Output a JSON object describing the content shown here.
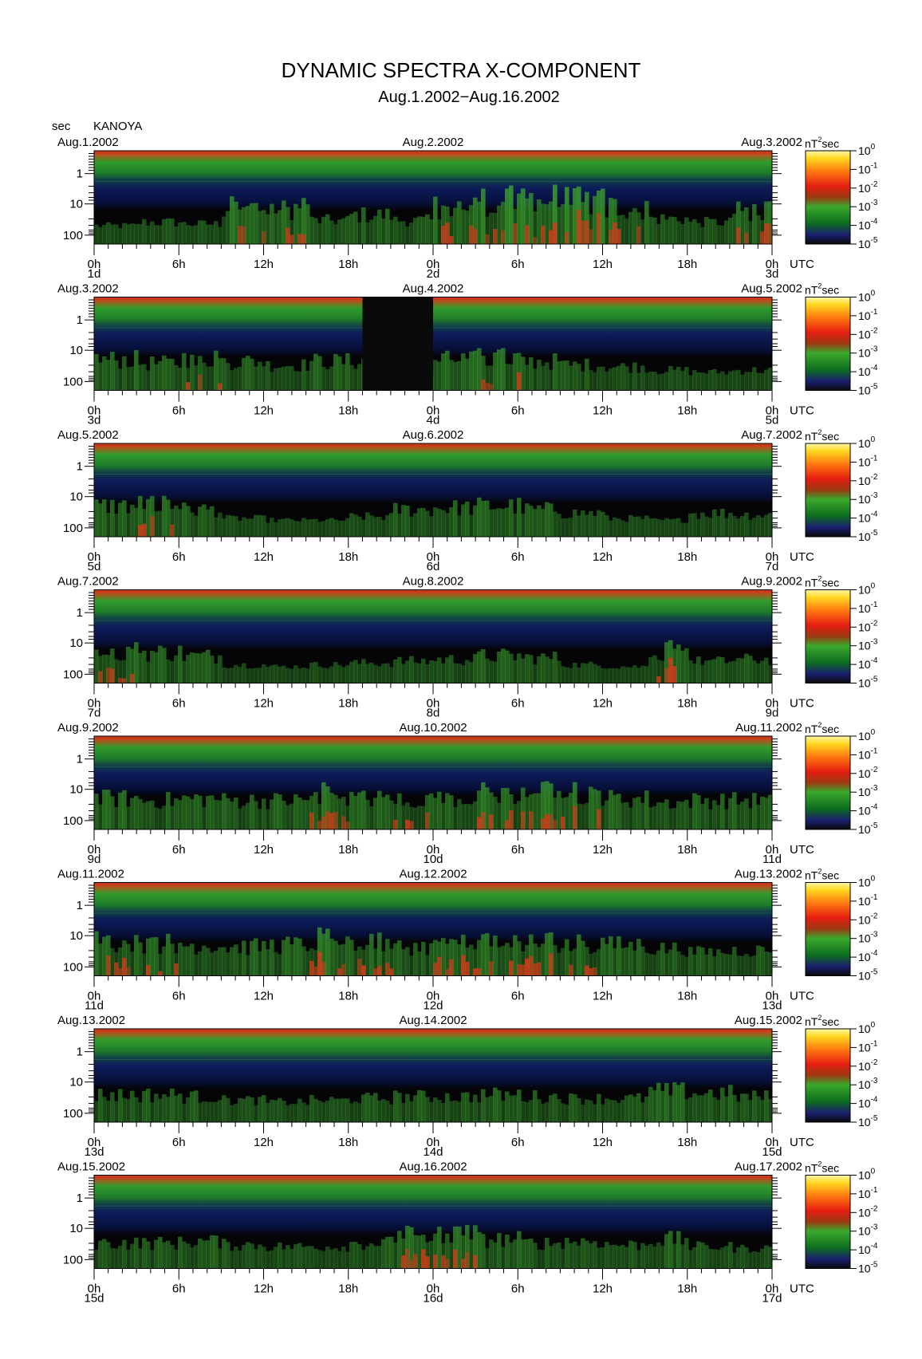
{
  "chart_data": {
    "type": "heatmap",
    "title": "DYNAMIC SPECTRA X-COMPONENT",
    "subtitle": "Aug.1.2002−Aug.16.2002",
    "station": "KANOYA",
    "ylabel": "sec",
    "colorbar_unit": "nT²sec",
    "colorbar_ticks": [
      {
        "base": "10",
        "exp": "0"
      },
      {
        "base": "10",
        "exp": "-1"
      },
      {
        "base": "10",
        "exp": "-2"
      },
      {
        "base": "10",
        "exp": "-3"
      },
      {
        "base": "10",
        "exp": "-4"
      },
      {
        "base": "10",
        "exp": "-5"
      }
    ],
    "colorbar_range": [
      -5,
      0
    ],
    "y_ticks": [
      "1",
      "10",
      "100"
    ],
    "y_scale": "log",
    "x_tick_labels": [
      "0h",
      "6h",
      "12h",
      "18h",
      "0h",
      "6h",
      "12h",
      "18h",
      "0h"
    ],
    "x_unit": "UTC",
    "panels": [
      {
        "left_date": "Aug.1.2002",
        "mid_date": "Aug.2.2002",
        "right_date": "Aug.3.2002",
        "day_labels": [
          "1d",
          "2d",
          "3d"
        ],
        "activity": [
          0.2,
          0.3,
          0.25,
          0.7,
          0.7,
          0.35,
          0.5,
          0.35,
          0.75,
          0.9,
          0.95,
          0.9,
          0.7,
          0.4,
          0.3,
          0.6
        ]
      },
      {
        "left_date": "Aug.3.2002",
        "mid_date": "Aug.4.2002",
        "right_date": "Aug.5.2002",
        "day_labels": [
          "3d",
          "4d",
          "5d"
        ],
        "activity": [
          0.55,
          0.45,
          0.6,
          0.5,
          0.4,
          0.5,
          0.5,
          0.1,
          0.55,
          0.6,
          0.5,
          0.4,
          0.35,
          0.25,
          0.2,
          0.25
        ],
        "gap_hours": [
          19,
          24
        ]
      },
      {
        "left_date": "Aug.5.2002",
        "mid_date": "Aug.6.2002",
        "right_date": "Aug.7.2002",
        "day_labels": [
          "5d",
          "6d",
          "7d"
        ],
        "activity": [
          0.55,
          0.6,
          0.45,
          0.2,
          0.15,
          0.15,
          0.25,
          0.45,
          0.5,
          0.55,
          0.45,
          0.35,
          0.2,
          0.15,
          0.35,
          0.3
        ]
      },
      {
        "left_date": "Aug.7.2002",
        "mid_date": "Aug.8.2002",
        "right_date": "Aug.9.2002",
        "day_labels": [
          "7d",
          "8d",
          "9d"
        ],
        "activity": [
          0.6,
          0.55,
          0.45,
          0.2,
          0.15,
          0.2,
          0.25,
          0.3,
          0.35,
          0.45,
          0.4,
          0.2,
          0.15,
          0.6,
          0.3,
          0.35
        ]
      },
      {
        "left_date": "Aug.9.2002",
        "mid_date": "Aug.10.2002",
        "right_date": "Aug.11.2002",
        "day_labels": [
          "9d",
          "10d",
          "11d"
        ],
        "activity": [
          0.55,
          0.5,
          0.55,
          0.5,
          0.5,
          0.7,
          0.55,
          0.6,
          0.55,
          0.7,
          0.75,
          0.7,
          0.55,
          0.45,
          0.5,
          0.5
        ]
      },
      {
        "left_date": "Aug.11.2002",
        "mid_date": "Aug.12.2002",
        "right_date": "Aug.13.2002",
        "day_labels": [
          "11d",
          "12d",
          "13d"
        ],
        "activity": [
          0.65,
          0.6,
          0.55,
          0.5,
          0.55,
          0.7,
          0.65,
          0.5,
          0.6,
          0.65,
          0.65,
          0.6,
          0.55,
          0.45,
          0.35,
          0.4
        ]
      },
      {
        "left_date": "Aug.13.2002",
        "mid_date": "Aug.14.2002",
        "right_date": "Aug.15.2002",
        "day_labels": [
          "13d",
          "14d",
          "15d"
        ],
        "activity": [
          0.45,
          0.45,
          0.4,
          0.3,
          0.25,
          0.3,
          0.35,
          0.4,
          0.4,
          0.45,
          0.4,
          0.35,
          0.35,
          0.55,
          0.5,
          0.4
        ]
      },
      {
        "left_date": "Aug.15.2002",
        "mid_date": "Aug.16.2002",
        "right_date": "Aug.17.2002",
        "day_labels": [
          "15d",
          "16d",
          "17d"
        ],
        "activity": [
          0.4,
          0.4,
          0.45,
          0.35,
          0.3,
          0.3,
          0.4,
          0.6,
          0.65,
          0.5,
          0.4,
          0.45,
          0.35,
          0.5,
          0.3,
          0.25
        ]
      }
    ],
    "colors": {
      "band_top": "#c83c1c",
      "band_green": "#2e9a2a",
      "band_blue": "#0e1a55",
      "background": "#050508",
      "activity_green": "#3aa02e",
      "activity_red": "#d03a1a",
      "colorbar_stops": [
        "#0a0a0a",
        "#1a1f70",
        "#0d6d1f",
        "#3aa92c",
        "#9a3a12",
        "#e51e10",
        "#ff7a10",
        "#ffd820",
        "#fff7a8"
      ]
    }
  }
}
